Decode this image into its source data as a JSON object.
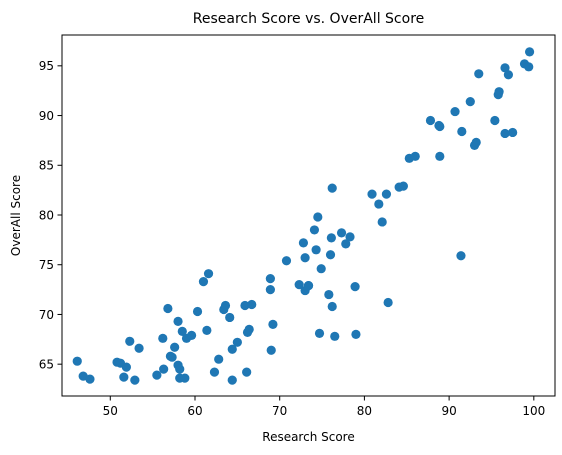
{
  "chart_data": {
    "type": "scatter",
    "title": "Research Score vs. OverAll Score",
    "xlabel": "Research Score",
    "ylabel": "OverAll Score",
    "xlim": [
      44.3,
      102.5
    ],
    "ylim": [
      61.8,
      98.1
    ],
    "xticks": [
      50,
      60,
      70,
      80,
      90,
      100
    ],
    "yticks": [
      65,
      70,
      75,
      80,
      85,
      90,
      95
    ],
    "grid": false,
    "marker_color": "#1f77b4",
    "points": [
      [
        46.1,
        65.3
      ],
      [
        46.8,
        63.8
      ],
      [
        47.6,
        63.5
      ],
      [
        50.8,
        65.2
      ],
      [
        51.2,
        65.1
      ],
      [
        51.6,
        63.7
      ],
      [
        51.9,
        64.7
      ],
      [
        52.3,
        67.3
      ],
      [
        52.9,
        63.4
      ],
      [
        53.4,
        66.6
      ],
      [
        55.5,
        63.9
      ],
      [
        56.2,
        67.6
      ],
      [
        56.3,
        64.5
      ],
      [
        56.8,
        70.6
      ],
      [
        57.1,
        65.8
      ],
      [
        57.3,
        65.7
      ],
      [
        57.6,
        66.7
      ],
      [
        58.0,
        69.3
      ],
      [
        58.0,
        64.9
      ],
      [
        58.2,
        64.5
      ],
      [
        58.2,
        63.6
      ],
      [
        58.5,
        68.3
      ],
      [
        58.8,
        63.6
      ],
      [
        59.0,
        67.6
      ],
      [
        59.6,
        67.9
      ],
      [
        60.3,
        70.3
      ],
      [
        61.0,
        73.3
      ],
      [
        61.4,
        68.4
      ],
      [
        61.6,
        74.1
      ],
      [
        62.3,
        64.2
      ],
      [
        62.8,
        65.5
      ],
      [
        63.4,
        70.5
      ],
      [
        63.6,
        70.9
      ],
      [
        64.1,
        69.7
      ],
      [
        64.4,
        66.5
      ],
      [
        64.4,
        63.4
      ],
      [
        65.0,
        67.2
      ],
      [
        65.9,
        70.9
      ],
      [
        66.1,
        64.2
      ],
      [
        66.2,
        68.2
      ],
      [
        66.4,
        68.5
      ],
      [
        66.7,
        71.0
      ],
      [
        68.9,
        73.6
      ],
      [
        68.9,
        72.5
      ],
      [
        69.0,
        66.4
      ],
      [
        69.2,
        69.0
      ],
      [
        70.8,
        75.4
      ],
      [
        72.3,
        73.0
      ],
      [
        72.8,
        77.2
      ],
      [
        73.0,
        75.7
      ],
      [
        73.0,
        72.4
      ],
      [
        73.4,
        72.9
      ],
      [
        73.4,
        72.9
      ],
      [
        74.1,
        78.5
      ],
      [
        74.3,
        76.5
      ],
      [
        74.5,
        79.8
      ],
      [
        74.7,
        68.1
      ],
      [
        74.9,
        74.6
      ],
      [
        75.8,
        72.0
      ],
      [
        76.0,
        76.0
      ],
      [
        76.1,
        77.7
      ],
      [
        76.2,
        82.7
      ],
      [
        76.2,
        70.8
      ],
      [
        76.5,
        67.8
      ],
      [
        77.3,
        78.2
      ],
      [
        77.8,
        77.1
      ],
      [
        78.3,
        77.8
      ],
      [
        78.9,
        72.8
      ],
      [
        79.0,
        68.0
      ],
      [
        80.9,
        82.1
      ],
      [
        81.7,
        81.1
      ],
      [
        82.1,
        79.3
      ],
      [
        82.6,
        82.1
      ],
      [
        82.8,
        71.2
      ],
      [
        84.1,
        82.8
      ],
      [
        84.6,
        82.9
      ],
      [
        85.3,
        85.7
      ],
      [
        86.0,
        85.9
      ],
      [
        87.8,
        89.5
      ],
      [
        88.8,
        89.0
      ],
      [
        88.9,
        85.9
      ],
      [
        88.9,
        88.9
      ],
      [
        90.7,
        90.4
      ],
      [
        91.4,
        75.9
      ],
      [
        91.5,
        88.4
      ],
      [
        92.5,
        91.4
      ],
      [
        93.0,
        87.0
      ],
      [
        93.2,
        87.3
      ],
      [
        93.5,
        94.2
      ],
      [
        95.4,
        89.5
      ],
      [
        95.8,
        92.1
      ],
      [
        95.9,
        92.4
      ],
      [
        96.6,
        94.8
      ],
      [
        96.6,
        88.2
      ],
      [
        97.0,
        94.1
      ],
      [
        97.5,
        88.3
      ],
      [
        98.9,
        95.2
      ],
      [
        99.4,
        94.9
      ],
      [
        99.5,
        96.4
      ]
    ]
  }
}
